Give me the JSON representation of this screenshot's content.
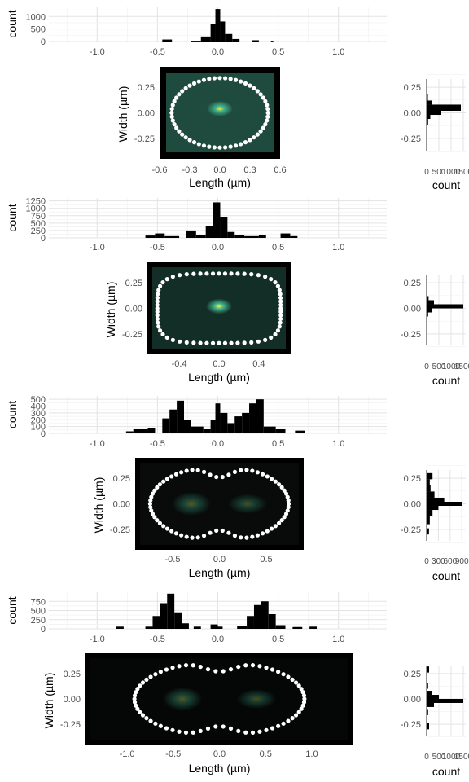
{
  "chart_data": [
    {
      "type": "histogram",
      "panel": 1,
      "xlabel": "Length (µm)",
      "ylabel": "Width (µm)",
      "count_label": "count",
      "top_hist": {
        "xlim": [
          -1.4,
          1.4
        ],
        "xticks": [
          -1.0,
          -0.5,
          0.0,
          0.5,
          1.0
        ],
        "xtick_labels": [
          "-1.0",
          "-0.5",
          "0.0",
          "0.5",
          "1.0"
        ],
        "ylim": [
          0,
          1400
        ],
        "yticks": [
          0,
          500,
          1000
        ],
        "ytick_labels": [
          "0",
          "500",
          "1000"
        ],
        "bins": [
          {
            "x0": -0.46,
            "x1": -0.38,
            "count": 80
          },
          {
            "x0": -0.22,
            "x1": -0.14,
            "count": 30
          },
          {
            "x0": -0.14,
            "x1": -0.06,
            "count": 200
          },
          {
            "x0": -0.06,
            "x1": -0.02,
            "count": 700
          },
          {
            "x0": -0.02,
            "x1": 0.02,
            "count": 1300
          },
          {
            "x0": 0.02,
            "x1": 0.06,
            "count": 800
          },
          {
            "x0": 0.06,
            "x1": 0.12,
            "count": 300
          },
          {
            "x0": 0.12,
            "x1": 0.18,
            "count": 100
          },
          {
            "x0": 0.28,
            "x1": 0.34,
            "count": 50
          },
          {
            "x0": 0.44,
            "x1": 0.46,
            "count": 30
          }
        ]
      },
      "right_hist": {
        "ylim": [
          -0.45,
          0.45
        ],
        "yticks": [
          -0.25,
          0.0,
          0.25
        ],
        "ytick_labels": [
          "-0.25",
          "0.00",
          "0.25"
        ],
        "xticks": [
          0,
          500,
          1000,
          1500
        ],
        "xtick_labels": [
          "0",
          "500",
          "1000",
          "1500"
        ],
        "xlim": [
          0,
          1600
        ],
        "bins": [
          {
            "y0": 0.02,
            "y1": 0.08,
            "count": 1400
          },
          {
            "y0": -0.02,
            "y1": 0.02,
            "count": 600
          },
          {
            "y0": 0.08,
            "y1": 0.12,
            "count": 200
          },
          {
            "y0": -0.06,
            "y1": -0.02,
            "count": 150
          },
          {
            "y0": 0.12,
            "y1": 0.18,
            "count": 50
          },
          {
            "y0": -0.12,
            "y1": -0.06,
            "count": 60
          }
        ]
      },
      "heatmap": {
        "xlim": [
          -0.6,
          0.6
        ],
        "ylim": [
          -0.45,
          0.45
        ],
        "xticks": [
          -0.6,
          -0.3,
          0.0,
          0.3,
          0.6
        ],
        "xtick_labels": [
          "-0.6",
          "-0.3",
          "0.0",
          "0.3",
          "0.6"
        ],
        "yticks": [
          -0.25,
          0.0,
          0.25
        ],
        "ytick_labels": [
          "-0.25",
          "0.00",
          "0.25"
        ],
        "background": "#1f4b3f",
        "hotspot": {
          "x": 0.0,
          "y": 0.04
        }
      },
      "outline": {
        "shape": "ellipse",
        "half_length": 0.48,
        "half_width": 0.34,
        "neck": 0.0
      }
    },
    {
      "type": "histogram",
      "panel": 2,
      "xlabel": "Length (µm)",
      "ylabel": "Width (µm)",
      "count_label": "count",
      "top_hist": {
        "xlim": [
          -1.4,
          1.4
        ],
        "xticks": [
          -1.0,
          -0.5,
          0.0,
          0.5,
          1.0
        ],
        "xtick_labels": [
          "-1.0",
          "-0.5",
          "0.0",
          "0.5",
          "1.0"
        ],
        "ylim": [
          0,
          1350
        ],
        "yticks": [
          0,
          250,
          500,
          750,
          1000,
          1250
        ],
        "ytick_labels": [
          "0",
          "250",
          "500",
          "750",
          "1000",
          "1250"
        ],
        "bins": [
          {
            "x0": -0.6,
            "x1": -0.52,
            "count": 80
          },
          {
            "x0": -0.52,
            "x1": -0.44,
            "count": 150
          },
          {
            "x0": -0.44,
            "x1": -0.32,
            "count": 60
          },
          {
            "x0": -0.26,
            "x1": -0.18,
            "count": 250
          },
          {
            "x0": -0.18,
            "x1": -0.1,
            "count": 100
          },
          {
            "x0": -0.1,
            "x1": -0.04,
            "count": 400
          },
          {
            "x0": -0.04,
            "x1": 0.02,
            "count": 1200
          },
          {
            "x0": 0.02,
            "x1": 0.08,
            "count": 700
          },
          {
            "x0": 0.08,
            "x1": 0.14,
            "count": 200
          },
          {
            "x0": 0.14,
            "x1": 0.22,
            "count": 100
          },
          {
            "x0": 0.22,
            "x1": 0.34,
            "count": 60
          },
          {
            "x0": 0.34,
            "x1": 0.4,
            "count": 100
          },
          {
            "x0": 0.52,
            "x1": 0.6,
            "count": 150
          },
          {
            "x0": 0.6,
            "x1": 0.66,
            "count": 60
          }
        ]
      },
      "right_hist": {
        "ylim": [
          -0.45,
          0.45
        ],
        "yticks": [
          -0.25,
          0.0,
          0.25
        ],
        "ytick_labels": [
          "-0.25",
          "0.00",
          "0.25"
        ],
        "xticks": [
          0,
          500,
          1000,
          1500
        ],
        "xtick_labels": [
          "0",
          "500",
          "1000",
          "1500"
        ],
        "xlim": [
          0,
          1600
        ],
        "bins": [
          {
            "y0": 0.0,
            "y1": 0.04,
            "count": 1500
          },
          {
            "y0": 0.04,
            "y1": 0.08,
            "count": 300
          },
          {
            "y0": -0.04,
            "y1": 0.0,
            "count": 200
          },
          {
            "y0": 0.08,
            "y1": 0.12,
            "count": 80
          },
          {
            "y0": -0.08,
            "y1": -0.04,
            "count": 60
          }
        ]
      },
      "heatmap": {
        "xlim": [
          -0.72,
          0.72
        ],
        "ylim": [
          -0.45,
          0.45
        ],
        "xticks": [
          -0.4,
          0.0,
          0.4
        ],
        "xtick_labels": [
          "-0.4",
          "0.0",
          "0.4"
        ],
        "yticks": [
          -0.25,
          0.0,
          0.25
        ],
        "ytick_labels": [
          "-0.25",
          "0.00",
          "0.25"
        ],
        "background": "#132e26",
        "hotspot": {
          "x": 0.0,
          "y": 0.02
        }
      },
      "outline": {
        "shape": "capsule",
        "half_length": 0.62,
        "half_width": 0.34,
        "neck": 0.0
      }
    },
    {
      "type": "histogram",
      "panel": 3,
      "xlabel": "Length (µm)",
      "ylabel": "Width (µm)",
      "count_label": "count",
      "top_hist": {
        "xlim": [
          -1.4,
          1.4
        ],
        "xticks": [
          -1.0,
          -0.5,
          0.0,
          0.5,
          1.0
        ],
        "xtick_labels": [
          "-1.0",
          "-0.5",
          "0.0",
          "0.5",
          "1.0"
        ],
        "ylim": [
          0,
          550
        ],
        "yticks": [
          0,
          100,
          200,
          300,
          400,
          500
        ],
        "ytick_labels": [
          "0",
          "100",
          "200",
          "300",
          "400",
          "500"
        ],
        "bins": [
          {
            "x0": -0.76,
            "x1": -0.7,
            "count": 30
          },
          {
            "x0": -0.7,
            "x1": -0.58,
            "count": 60
          },
          {
            "x0": -0.58,
            "x1": -0.52,
            "count": 80
          },
          {
            "x0": -0.46,
            "x1": -0.4,
            "count": 220
          },
          {
            "x0": -0.4,
            "x1": -0.34,
            "count": 350
          },
          {
            "x0": -0.34,
            "x1": -0.28,
            "count": 480
          },
          {
            "x0": -0.28,
            "x1": -0.22,
            "count": 200
          },
          {
            "x0": -0.22,
            "x1": -0.12,
            "count": 100
          },
          {
            "x0": -0.12,
            "x1": -0.06,
            "count": 60
          },
          {
            "x0": -0.06,
            "x1": -0.02,
            "count": 200
          },
          {
            "x0": -0.02,
            "x1": 0.02,
            "count": 440
          },
          {
            "x0": 0.02,
            "x1": 0.08,
            "count": 300
          },
          {
            "x0": 0.08,
            "x1": 0.14,
            "count": 150
          },
          {
            "x0": 0.14,
            "x1": 0.2,
            "count": 250
          },
          {
            "x0": 0.2,
            "x1": 0.26,
            "count": 300
          },
          {
            "x0": 0.26,
            "x1": 0.32,
            "count": 440
          },
          {
            "x0": 0.32,
            "x1": 0.38,
            "count": 500
          },
          {
            "x0": 0.38,
            "x1": 0.48,
            "count": 100
          },
          {
            "x0": 0.48,
            "x1": 0.56,
            "count": 60
          },
          {
            "x0": 0.64,
            "x1": 0.72,
            "count": 40
          }
        ]
      },
      "right_hist": {
        "ylim": [
          -0.45,
          0.45
        ],
        "yticks": [
          -0.25,
          0.0,
          0.25
        ],
        "ytick_labels": [
          "-0.25",
          "0.00",
          "0.25"
        ],
        "xticks": [
          0,
          300,
          600,
          900
        ],
        "xtick_labels": [
          "0",
          "300",
          "600",
          "900"
        ],
        "xlim": [
          0,
          1000
        ],
        "bins": [
          {
            "y0": 0.24,
            "y1": 0.3,
            "count": 150
          },
          {
            "y0": 0.18,
            "y1": 0.24,
            "count": 80
          },
          {
            "y0": 0.12,
            "y1": 0.18,
            "count": 100
          },
          {
            "y0": 0.06,
            "y1": 0.12,
            "count": 200
          },
          {
            "y0": 0.02,
            "y1": 0.06,
            "count": 450
          },
          {
            "y0": -0.02,
            "y1": 0.02,
            "count": 900
          },
          {
            "y0": -0.06,
            "y1": -0.02,
            "count": 300
          },
          {
            "y0": -0.12,
            "y1": -0.06,
            "count": 150
          },
          {
            "y0": -0.2,
            "y1": -0.12,
            "count": 80
          },
          {
            "y0": -0.3,
            "y1": -0.24,
            "count": 60
          }
        ]
      },
      "heatmap": {
        "xlim": [
          -0.9,
          0.9
        ],
        "ylim": [
          -0.45,
          0.45
        ],
        "xticks": [
          -0.5,
          0.0,
          0.5
        ],
        "xtick_labels": [
          "-0.5",
          "0.0",
          "0.5"
        ],
        "yticks": [
          -0.25,
          0.0,
          0.25
        ],
        "ytick_labels": [
          "-0.25",
          "0.00",
          "0.25"
        ],
        "background": "#080b0a",
        "hotspot": {
          "x": -0.3,
          "y": 0.0
        }
      },
      "outline": {
        "shape": "peanut",
        "half_length": 0.74,
        "half_width": 0.37,
        "neck": 0.3
      }
    },
    {
      "type": "histogram",
      "panel": 4,
      "xlabel": "Length (µm)",
      "ylabel": "Width (µm)",
      "count_label": "count",
      "top_hist": {
        "xlim": [
          -1.4,
          1.4
        ],
        "xticks": [
          -1.0,
          -0.5,
          0.0,
          0.5,
          1.0
        ],
        "xtick_labels": [
          "-1.0",
          "-0.5",
          "0.0",
          "0.5",
          "1.0"
        ],
        "ylim": [
          0,
          1000
        ],
        "yticks": [
          0,
          250,
          500,
          750
        ],
        "ytick_labels": [
          "0",
          "250",
          "500",
          "750"
        ],
        "bins": [
          {
            "x0": -0.84,
            "x1": -0.78,
            "count": 60
          },
          {
            "x0": -0.6,
            "x1": -0.54,
            "count": 60
          },
          {
            "x0": -0.54,
            "x1": -0.48,
            "count": 350
          },
          {
            "x0": -0.48,
            "x1": -0.42,
            "count": 700
          },
          {
            "x0": -0.42,
            "x1": -0.36,
            "count": 960
          },
          {
            "x0": -0.36,
            "x1": -0.3,
            "count": 450
          },
          {
            "x0": -0.3,
            "x1": -0.24,
            "count": 150
          },
          {
            "x0": -0.2,
            "x1": -0.14,
            "count": 60
          },
          {
            "x0": -0.06,
            "x1": 0.0,
            "count": 120
          },
          {
            "x0": 0.0,
            "x1": 0.04,
            "count": 60
          },
          {
            "x0": 0.16,
            "x1": 0.24,
            "count": 80
          },
          {
            "x0": 0.24,
            "x1": 0.3,
            "count": 350
          },
          {
            "x0": 0.3,
            "x1": 0.36,
            "count": 650
          },
          {
            "x0": 0.36,
            "x1": 0.42,
            "count": 750
          },
          {
            "x0": 0.42,
            "x1": 0.48,
            "count": 400
          },
          {
            "x0": 0.48,
            "x1": 0.56,
            "count": 100
          },
          {
            "x0": 0.62,
            "x1": 0.7,
            "count": 50
          },
          {
            "x0": 0.76,
            "x1": 0.82,
            "count": 60
          }
        ]
      },
      "right_hist": {
        "ylim": [
          -0.45,
          0.45
        ],
        "yticks": [
          -0.25,
          0.0,
          0.25
        ],
        "ytick_labels": [
          "-0.25",
          "0.00",
          "0.25"
        ],
        "xticks": [
          0,
          500,
          1000,
          1500
        ],
        "xtick_labels": [
          "0",
          "500",
          "1000",
          "1500"
        ],
        "xlim": [
          0,
          1600
        ],
        "bins": [
          {
            "y0": 0.26,
            "y1": 0.32,
            "count": 100
          },
          {
            "y0": 0.1,
            "y1": 0.16,
            "count": 60
          },
          {
            "y0": 0.04,
            "y1": 0.08,
            "count": 200
          },
          {
            "y0": 0.0,
            "y1": 0.04,
            "count": 500
          },
          {
            "y0": -0.04,
            "y1": 0.0,
            "count": 1500
          },
          {
            "y0": -0.08,
            "y1": -0.04,
            "count": 300
          },
          {
            "y0": -0.16,
            "y1": -0.1,
            "count": 60
          },
          {
            "y0": -0.3,
            "y1": -0.24,
            "count": 100
          }
        ]
      },
      "heatmap": {
        "xlim": [
          -1.45,
          1.45
        ],
        "ylim": [
          -0.45,
          0.45
        ],
        "xticks": [
          -1.0,
          -0.5,
          0.0,
          0.5,
          1.0
        ],
        "xtick_labels": [
          "-1.0",
          "-0.5",
          "0.0",
          "0.5",
          "1.0"
        ],
        "yticks": [
          -0.25,
          0.0,
          0.25
        ],
        "ytick_labels": [
          "-0.25",
          "0.00",
          "0.25"
        ],
        "background": "#050706",
        "hotspot": {
          "x": -0.4,
          "y": 0.0
        }
      },
      "outline": {
        "shape": "peanut",
        "half_length": 0.92,
        "half_width": 0.37,
        "neck": 0.27
      }
    }
  ]
}
